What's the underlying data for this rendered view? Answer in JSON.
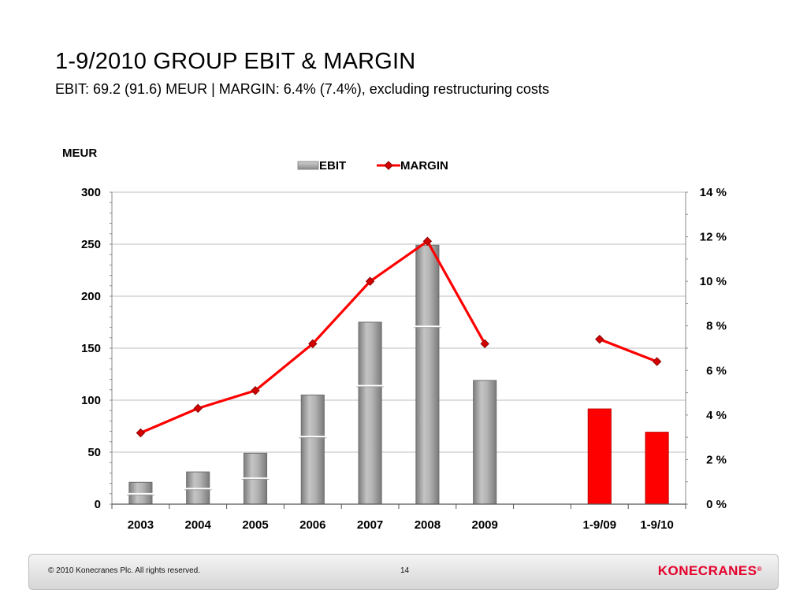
{
  "slide": {
    "title": "1-9/2010 GROUP EBIT & MARGIN",
    "subtitle": "EBIT: 69.2 (91.6) MEUR | MARGIN: 6.4% (7.4%), excluding restructuring costs"
  },
  "chart_data": {
    "type": "bar",
    "unit_label": "MEUR",
    "categories": [
      "2003",
      "2004",
      "2005",
      "2006",
      "2007",
      "2008",
      "2009",
      "",
      "1-9/09",
      "1-9/10"
    ],
    "series": [
      {
        "name": "EBIT",
        "type": "bar",
        "axis": "left",
        "values": [
          21,
          31,
          49,
          105,
          175,
          249,
          119,
          null,
          91.6,
          69.2
        ],
        "inner_marks": [
          10,
          15,
          25,
          65,
          114,
          171,
          null,
          null,
          null,
          null
        ],
        "bar_colors": [
          "#9e9e9e",
          "#9e9e9e",
          "#9e9e9e",
          "#9e9e9e",
          "#9e9e9e",
          "#9e9e9e",
          "#9e9e9e",
          null,
          "#ff0000",
          "#ff0000"
        ]
      },
      {
        "name": "MARGIN",
        "type": "line",
        "axis": "right",
        "segments": [
          [
            [
              0,
              3.2
            ],
            [
              1,
              4.3
            ],
            [
              2,
              5.1
            ],
            [
              3,
              7.2
            ],
            [
              4,
              10.0
            ],
            [
              5,
              11.8
            ],
            [
              6,
              7.2
            ]
          ],
          [
            [
              8,
              7.4
            ],
            [
              9,
              6.4
            ]
          ]
        ],
        "color": "#ff0000"
      }
    ],
    "y_left": {
      "min": 0,
      "max": 300,
      "ticks": [
        "0",
        "50",
        "100",
        "150",
        "200",
        "250",
        "300"
      ]
    },
    "y_right": {
      "min": 0,
      "max": 14,
      "ticks": [
        "0 %",
        "2 %",
        "4 %",
        "6 %",
        "8 %",
        "10 %",
        "12 %",
        "14 %"
      ]
    },
    "legend": {
      "position": "top-center",
      "entries": [
        "EBIT",
        "MARGIN"
      ]
    },
    "grid": true
  },
  "footer": {
    "copyright": "© 2010 Konecranes Plc. All rights reserved.",
    "page_number": "14",
    "logo_text": "KONECRANES",
    "logo_mark": "®"
  }
}
